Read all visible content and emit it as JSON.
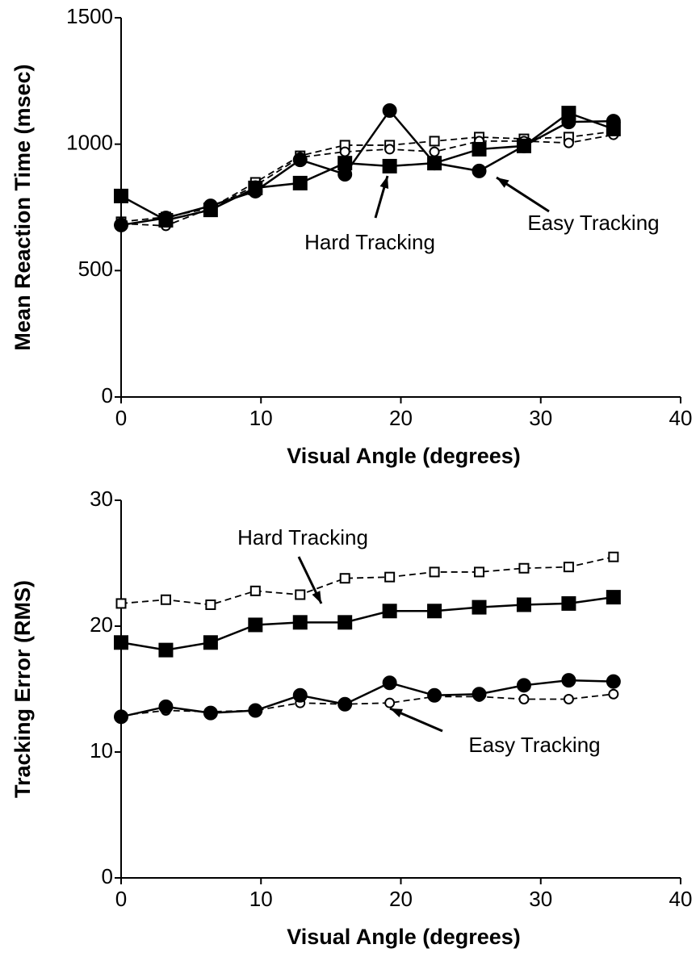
{
  "chart_data": [
    {
      "type": "line",
      "ylabel": "Mean Reaction Time (msec)",
      "xlabel": "Visual Angle (degrees)",
      "x": [
        0,
        3.2,
        6.4,
        9.6,
        12.8,
        16,
        19.2,
        22.4,
        25.6,
        28.8,
        32,
        35.2
      ],
      "xlim": [
        0,
        40
      ],
      "xticks": [
        0,
        10,
        20,
        30,
        40
      ],
      "ylim": [
        0,
        1500
      ],
      "yticks": [
        0,
        500,
        1000,
        1500
      ],
      "series": [
        {
          "color": "#000000",
          "marker": "square",
          "filled": false,
          "linestyle": "dashed",
          "values": [
            693,
            712,
            747,
            849,
            954,
            996,
            996,
            1012,
            1028,
            1021,
            1028,
            1050
          ]
        },
        {
          "color": "#000000",
          "marker": "circle",
          "filled": false,
          "linestyle": "dashed",
          "values": [
            686,
            677,
            747,
            836,
            948,
            970,
            980,
            970,
            1012,
            1012,
            1005,
            1037
          ]
        },
        {
          "color": "#000000",
          "marker": "square",
          "filled": true,
          "linestyle": "solid",
          "values": [
            795,
            699,
            740,
            827,
            846,
            925,
            913,
            925,
            980,
            993,
            1123,
            1060
          ]
        },
        {
          "color": "#000000",
          "marker": "circle",
          "filled": true,
          "linestyle": "solid",
          "values": [
            680,
            708,
            756,
            814,
            938,
            881,
            1133,
            925,
            894,
            993,
            1088,
            1091
          ]
        }
      ],
      "annotations": [
        "Hard Tracking",
        "Easy Tracking"
      ]
    },
    {
      "type": "line",
      "ylabel": "Tracking Error (RMS)",
      "xlabel": "Visual Angle (degrees)",
      "x": [
        0,
        3.2,
        6.4,
        9.6,
        12.8,
        16,
        19.2,
        22.4,
        25.6,
        28.8,
        32,
        35.2
      ],
      "xlim": [
        0,
        40
      ],
      "xticks": [
        0,
        10,
        20,
        30,
        40
      ],
      "ylim": [
        0,
        30
      ],
      "yticks": [
        0,
        10,
        20,
        30
      ],
      "series": [
        {
          "color": "#000000",
          "marker": "square",
          "filled": false,
          "linestyle": "dashed",
          "values": [
            21.8,
            22.1,
            21.7,
            22.8,
            22.5,
            23.8,
            23.9,
            24.3,
            24.3,
            24.6,
            24.7,
            25.5
          ]
        },
        {
          "color": "#000000",
          "marker": "circle",
          "filled": false,
          "linestyle": "dashed",
          "values": [
            12.9,
            13.3,
            13.2,
            13.3,
            13.9,
            13.8,
            13.9,
            14.4,
            14.4,
            14.2,
            14.2,
            14.6
          ]
        },
        {
          "color": "#000000",
          "marker": "square",
          "filled": true,
          "linestyle": "solid",
          "values": [
            18.7,
            18.1,
            18.7,
            20.1,
            20.3,
            20.3,
            21.2,
            21.2,
            21.5,
            21.7,
            21.8,
            22.3
          ]
        },
        {
          "color": "#000000",
          "marker": "circle",
          "filled": true,
          "linestyle": "solid",
          "values": [
            12.8,
            13.6,
            13.1,
            13.3,
            14.5,
            13.8,
            15.5,
            14.5,
            14.6,
            15.3,
            15.7,
            15.6
          ]
        }
      ],
      "annotations": [
        "Hard Tracking",
        "Easy Tracking"
      ]
    }
  ]
}
